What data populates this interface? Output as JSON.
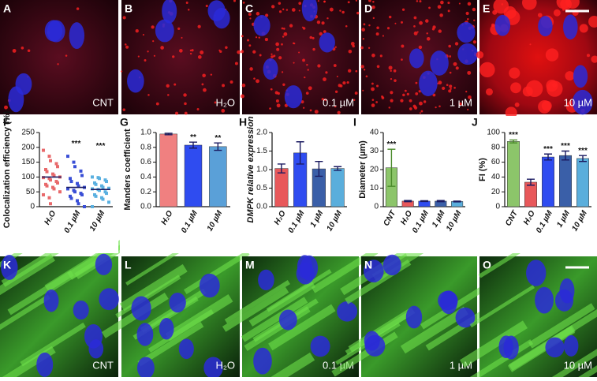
{
  "top_images": [
    {
      "label": "A",
      "caption": "CNT"
    },
    {
      "label": "B",
      "caption": "H₂O"
    },
    {
      "label": "C",
      "caption": "0.1 µM"
    },
    {
      "label": "D",
      "caption": "1 µM"
    },
    {
      "label": "E",
      "caption": "10 µM"
    }
  ],
  "bottom_images": [
    {
      "label": "K",
      "caption": "CNT"
    },
    {
      "label": "L",
      "caption": "H₂O"
    },
    {
      "label": "M",
      "caption": "0.1 µM"
    },
    {
      "label": "N",
      "caption": "1 µM"
    },
    {
      "label": "O",
      "caption": "10 µM"
    }
  ],
  "chart_data": [
    {
      "type": "strip",
      "panel_label": "F",
      "ylabel": "Colocalization efficiency (%)",
      "categories": [
        "H₂O",
        "0.1 µM",
        "10 µM"
      ],
      "values": [
        100,
        65,
        58
      ],
      "points": [
        [
          190,
          170,
          155,
          145,
          135,
          125,
          118,
          110,
          105,
          100,
          98,
          95,
          90,
          85,
          80,
          75,
          70,
          65,
          60,
          50,
          40,
          30,
          10
        ],
        [
          170,
          150,
          135,
          120,
          105,
          95,
          85,
          78,
          70,
          65,
          60,
          55,
          50,
          45,
          40,
          35,
          28,
          20,
          10,
          0
        ],
        [
          100,
          98,
          95,
          90,
          85,
          80,
          75,
          70,
          65,
          62,
          60,
          58,
          55,
          50,
          45,
          40,
          35,
          30,
          25,
          15,
          0
        ]
      ],
      "colors": [
        "#e8696b",
        "#3a4fd6",
        "#5ab0e0"
      ],
      "annotations": [
        null,
        "***",
        "***"
      ],
      "ylim": [
        0,
        250
      ],
      "yticks": [
        0,
        50,
        100,
        150,
        200,
        250
      ]
    },
    {
      "type": "bar",
      "panel_label": "G",
      "ylabel": "Manders coefficient",
      "categories": [
        "H₂O",
        "0.1 µM",
        "10 µM"
      ],
      "values": [
        0.98,
        0.83,
        0.81
      ],
      "errors": [
        0.01,
        0.04,
        0.05
      ],
      "colors": [
        "#f08080",
        "#2f4cf0",
        "#5aa0d8"
      ],
      "annotations": [
        null,
        "**",
        "**"
      ],
      "ylim": [
        0,
        1.0
      ],
      "yticks": [
        {
          "value": 0,
          "label": "0.0"
        },
        0.2,
        0.4,
        0.6,
        0.8,
        {
          "value": 1,
          "label": "1.0"
        }
      ]
    },
    {
      "type": "bar",
      "panel_label": "H",
      "ylabel": "DMPK relative expression",
      "categories": [
        "H₂O",
        "0.1 µM",
        "1 µM",
        "10 µM"
      ],
      "values": [
        1.03,
        1.45,
        1.02,
        1.03
      ],
      "errors": [
        0.12,
        0.3,
        0.2,
        0.05
      ],
      "colors": [
        "#e8585a",
        "#2f4cf0",
        "#3a5fa8",
        "#5aaedc"
      ],
      "annotations": [
        null,
        null,
        null,
        null
      ],
      "ylim": [
        0,
        2.0
      ],
      "yticks": [
        {
          "value": 0,
          "label": "0.0"
        },
        0.5,
        {
          "value": 1,
          "label": "1.0"
        },
        1.5,
        {
          "value": 2,
          "label": "2.0"
        }
      ]
    },
    {
      "type": "bar",
      "panel_label": "I",
      "ylabel": "Diameter (µm)",
      "categories": [
        "CNT",
        "H₂O",
        "0.1 µM",
        "1 µM",
        "10 µM"
      ],
      "values": [
        21,
        3,
        3,
        3,
        2.8
      ],
      "errors": [
        10,
        0.3,
        0.2,
        0.3,
        0.2
      ],
      "colors": [
        "#8cc56a",
        "#e8585a",
        "#2f4cf0",
        "#3a5fa8",
        "#5aaedc"
      ],
      "annotations": [
        "***",
        null,
        null,
        null,
        null
      ],
      "ylim": [
        0,
        40
      ],
      "yticks": [
        0,
        10,
        20,
        30,
        40
      ]
    },
    {
      "type": "bar",
      "panel_label": "J",
      "ylabel": "FI (%)",
      "categories": [
        "CNT",
        "H₂O",
        "0.1 µM",
        "1 µM",
        "10 µM"
      ],
      "values": [
        88,
        33,
        67,
        69,
        65
      ],
      "errors": [
        2,
        4,
        4,
        6,
        4
      ],
      "colors": [
        "#8cc56a",
        "#e8585a",
        "#2f4cf0",
        "#3a5fa8",
        "#5aaedc"
      ],
      "annotations": [
        "***",
        null,
        "***",
        "***",
        "***"
      ],
      "ylim": [
        0,
        100
      ],
      "yticks": [
        0,
        20,
        40,
        60,
        80,
        100
      ]
    }
  ]
}
